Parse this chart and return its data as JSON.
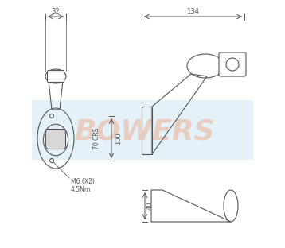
{
  "bg_color": "#ffffff",
  "line_color": "#555555",
  "dim_color": "#555555",
  "watermark_text": "BOWERS",
  "dim_32": "32",
  "dim_134": "134",
  "dim_100": "100",
  "dim_70": "70 CRS",
  "dim_40": "40",
  "bolt_label": "M6 (X2)\n4.5Nm",
  "band_color": "#cde4f5",
  "band_alpha": 0.5
}
